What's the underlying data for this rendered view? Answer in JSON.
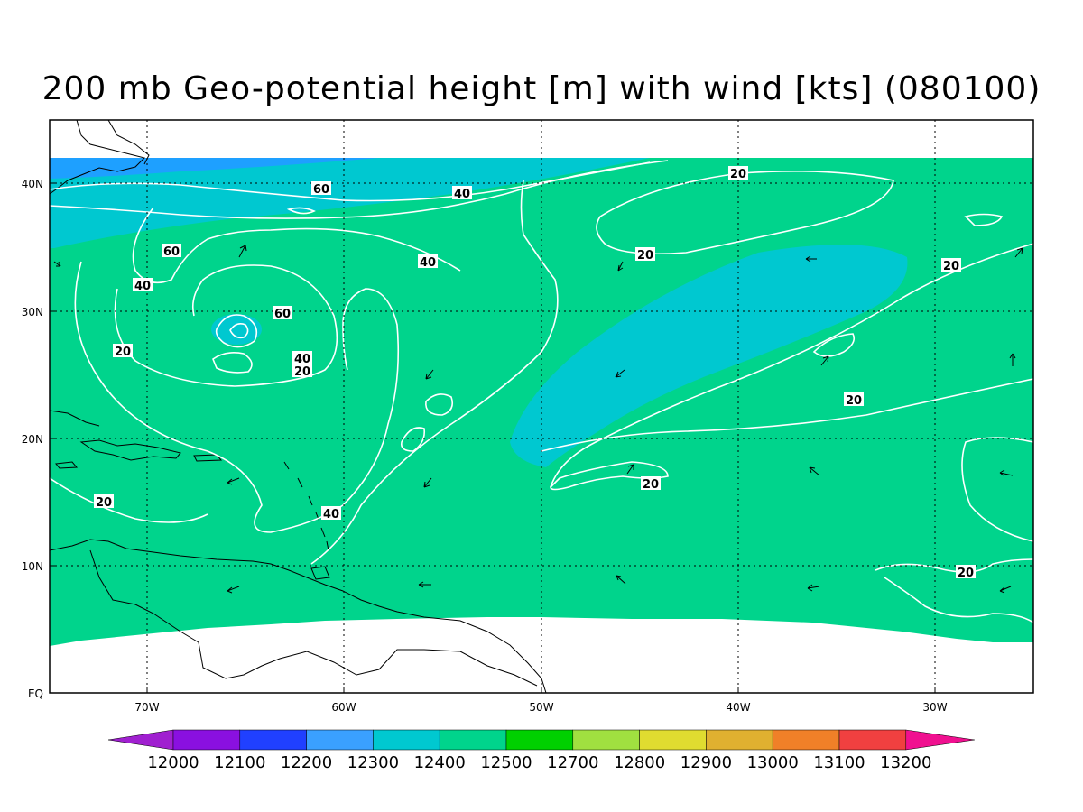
{
  "title": "200 mb Geo-potential height [m] with wind [kts] (080100)",
  "axes": {
    "lon_labels": [
      "70W",
      "60W",
      "50W",
      "40W",
      "30W"
    ],
    "lat_labels": [
      "40N",
      "30N",
      "20N",
      "10N",
      "EQ"
    ]
  },
  "colorbar": {
    "colors": [
      "#a020d0",
      "#8a10e0",
      "#2040ff",
      "#3aa0ff",
      "#00c8d0",
      "#00d48c",
      "#00d000",
      "#a0e040",
      "#e0dc30",
      "#e0b030",
      "#f08028",
      "#f04040",
      "#f01090"
    ],
    "labels": [
      "12000",
      "12100",
      "12200",
      "12300",
      "12400",
      "12500",
      "12700",
      "12800",
      "12900",
      "13000",
      "13100",
      "13200"
    ]
  },
  "fill_colors": {
    "main": "#00d48c",
    "cyan": "#00c8d0",
    "blue": "#1ea0ff"
  },
  "contour_labels": [
    {
      "text": "60"
    },
    {
      "text": "40"
    },
    {
      "text": "20"
    },
    {
      "text": "60"
    },
    {
      "text": "40"
    },
    {
      "text": "20"
    },
    {
      "text": "40"
    },
    {
      "text": "20"
    },
    {
      "text": "60"
    },
    {
      "text": "40"
    },
    {
      "text": "20"
    },
    {
      "text": "20"
    },
    {
      "text": "20"
    },
    {
      "text": "40"
    },
    {
      "text": "20"
    },
    {
      "text": "20"
    },
    {
      "text": "20"
    }
  ]
}
